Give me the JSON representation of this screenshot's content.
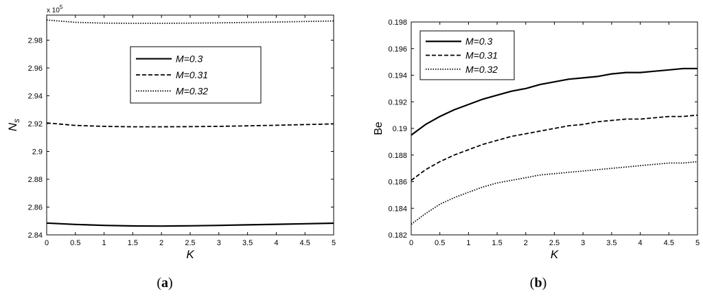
{
  "chart_data": [
    {
      "type": "line",
      "panel_label": "(a)",
      "panel_letter": "a",
      "xlabel": "K",
      "ylabel": "N",
      "ylabel_sub": "s",
      "y_multiplier": "x 10",
      "y_multiplier_exp": "5",
      "xlim": [
        0,
        5
      ],
      "ylim": [
        2.84,
        2.998
      ],
      "xticks": [
        "0",
        "0.5",
        "1",
        "1.5",
        "2",
        "2.5",
        "3",
        "3.5",
        "4",
        "4.5",
        "5"
      ],
      "yticks": [
        "2.84",
        "2.86",
        "2.88",
        "2.9",
        "2.92",
        "2.94",
        "2.96",
        "2.98"
      ],
      "grid": false,
      "legend_position": "top-right",
      "x": [
        0,
        0.5,
        1,
        1.5,
        2,
        2.5,
        3,
        3.5,
        4,
        4.5,
        5
      ],
      "series": [
        {
          "name": "M=0.3",
          "style": "solid",
          "values": [
            2.8485,
            2.8475,
            2.8468,
            2.8464,
            2.8463,
            2.8465,
            2.8468,
            2.8472,
            2.8476,
            2.848,
            2.8484
          ]
        },
        {
          "name": "M=0.31",
          "style": "dashed",
          "values": [
            2.9205,
            2.9187,
            2.918,
            2.9177,
            2.9177,
            2.9178,
            2.918,
            2.9184,
            2.9188,
            2.9193,
            2.9198
          ]
        },
        {
          "name": "M=0.32",
          "style": "dotted",
          "values": [
            2.9945,
            2.9928,
            2.9922,
            2.9921,
            2.9921,
            2.9922,
            2.9924,
            2.9927,
            2.993,
            2.9934,
            2.9938
          ]
        }
      ]
    },
    {
      "type": "line",
      "panel_label": "(b)",
      "panel_letter": "b",
      "xlabel": "K",
      "ylabel": "Be",
      "xlim": [
        0,
        5
      ],
      "ylim": [
        0.182,
        0.198
      ],
      "xticks": [
        "0",
        "0.5",
        "1",
        "1.5",
        "2",
        "2.5",
        "3",
        "3.5",
        "4",
        "4.5",
        "5"
      ],
      "yticks": [
        "0.182",
        "0.184",
        "0.186",
        "0.188",
        "0.19",
        "0.192",
        "0.194",
        "0.196",
        "0.198"
      ],
      "grid": false,
      "legend_position": "top-left",
      "x": [
        0,
        0.25,
        0.5,
        0.75,
        1,
        1.25,
        1.5,
        1.75,
        2,
        2.25,
        2.5,
        2.75,
        3,
        3.25,
        3.5,
        3.75,
        4,
        4.25,
        4.5,
        4.75,
        5
      ],
      "series": [
        {
          "name": "M=0.3",
          "style": "solid",
          "values": [
            0.1895,
            0.1903,
            0.1909,
            0.1914,
            0.1918,
            0.1922,
            0.1925,
            0.1928,
            0.193,
            0.1933,
            0.1935,
            0.1937,
            0.1938,
            0.1939,
            0.1941,
            0.1942,
            0.1942,
            0.1943,
            0.1944,
            0.1945,
            0.1945
          ]
        },
        {
          "name": "M=0.31",
          "style": "dashed",
          "values": [
            0.1861,
            0.1869,
            0.1875,
            0.188,
            0.1884,
            0.1888,
            0.1891,
            0.1894,
            0.1896,
            0.1898,
            0.19,
            0.1902,
            0.1903,
            0.1905,
            0.1906,
            0.1907,
            0.1907,
            0.1908,
            0.1909,
            0.1909,
            0.191
          ]
        },
        {
          "name": "M=0.32",
          "style": "dotted",
          "values": [
            0.1828,
            0.1836,
            0.1843,
            0.1848,
            0.1852,
            0.1856,
            0.1859,
            0.1861,
            0.1863,
            0.1865,
            0.1866,
            0.1867,
            0.1868,
            0.1869,
            0.187,
            0.1871,
            0.1872,
            0.1873,
            0.1874,
            0.1874,
            0.1875
          ]
        }
      ]
    }
  ]
}
